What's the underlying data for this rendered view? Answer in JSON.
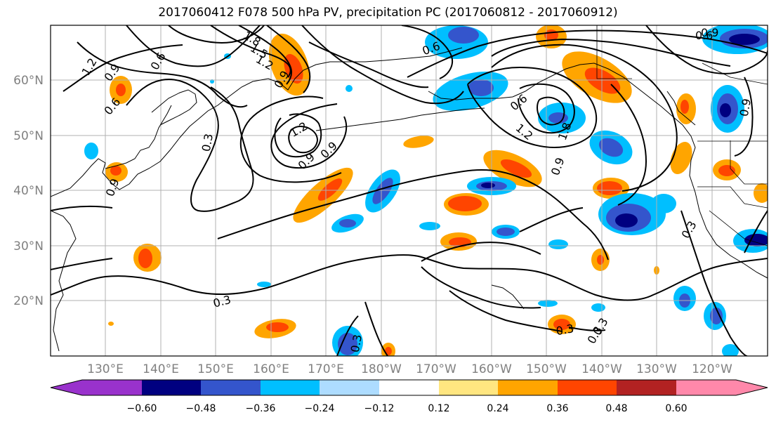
{
  "title": "2017060412 F078 500 hPa PV, precipitation PC (2017060812 - 2017060912)",
  "lat_labels": [
    "60°N",
    "50°N",
    "40°N",
    "30°N",
    "20°N"
  ],
  "lon_labels": [
    "130°E",
    "140°E",
    "150°E",
    "160°E",
    "170°E",
    "180°W",
    "170°W",
    "160°W",
    "150°W",
    "140°W",
    "130°W",
    "120°W"
  ],
  "colorbar": {
    "ticks": [
      "−0.60",
      "−0.48",
      "−0.36",
      "−0.24",
      "−0.12",
      "0.12",
      "0.24",
      "0.36",
      "0.48",
      "0.60"
    ],
    "colors": [
      "#9932CC",
      "#000080",
      "#3455CC",
      "#00BFFF",
      "#ADDCFF",
      "#FFFFFF",
      "#FFE680",
      "#FFA500",
      "#FF4500",
      "#B22222",
      "#FF88AA"
    ]
  },
  "contour_labels": [
    "1.2",
    "0.9",
    "0.6",
    "1.8",
    "1.5",
    "1.2",
    "0.9",
    "0.6",
    "0.9",
    "0.3",
    "0.9",
    "0.3",
    "1.2",
    "0.9",
    "0.6",
    "0.3",
    "0.3",
    "0.6",
    "0.9",
    "1.2",
    "1.8",
    "0.6",
    "0.9",
    "0.9",
    "0.3",
    "0.3",
    "0.3"
  ]
}
